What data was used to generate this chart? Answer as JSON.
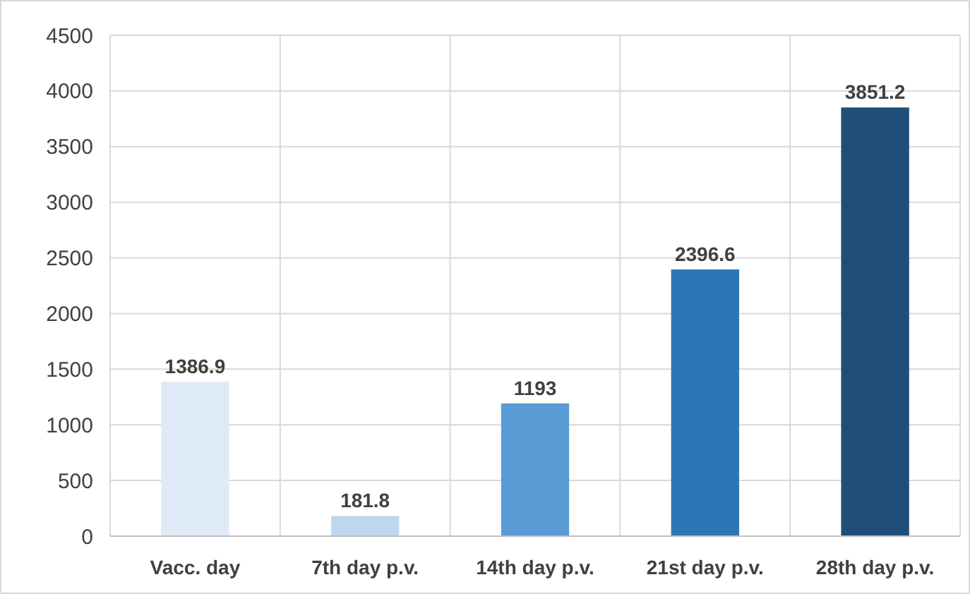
{
  "chart_data": {
    "type": "bar",
    "categories": [
      "Vacc. day",
      "7th day p.v.",
      "14th day p.v.",
      "21st day p.v.",
      "28th day p.v."
    ],
    "values": [
      1386.9,
      181.8,
      1193,
      2396.6,
      3851.2
    ],
    "colors": [
      "#deebf7",
      "#bdd7ee",
      "#5b9bd5",
      "#2e75b6",
      "#1f4e79"
    ],
    "ylim": [
      0,
      4500
    ],
    "yticks": [
      0,
      500,
      1000,
      1500,
      2000,
      2500,
      3000,
      3500,
      4000,
      4500
    ],
    "grid": true,
    "data_labels": true
  }
}
